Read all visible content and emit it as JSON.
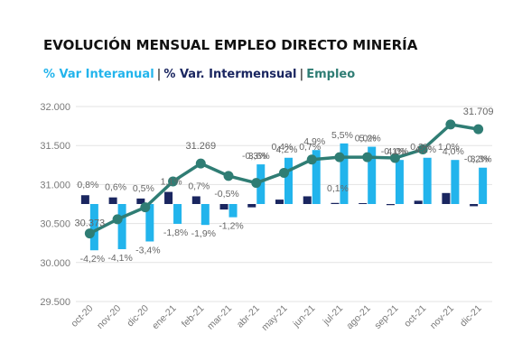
{
  "colors": {
    "interanual": "#22b4ec",
    "intermensual": "#1a2660",
    "empleo": "#2f7d74",
    "grid": "#e3e3e3",
    "sep": "#444444"
  },
  "chart_data": {
    "type": "bar",
    "title": "EVOLUCIÓN MENSUAL EMPLEO DIRECTO MINERÍA",
    "legend": {
      "items": [
        "% Var Interanual",
        "% Var. Intermensual",
        "Empleo"
      ],
      "separator": "|",
      "placement": "top-left"
    },
    "categories": [
      "oct-20",
      "nov-20",
      "dic-20",
      "ene-21",
      "feb-21",
      "mar-21",
      "abr-21",
      "may-21",
      "jun-21",
      "jul-21",
      "ago-21",
      "sep-21",
      "oct-21",
      "nov-21",
      "dic-21"
    ],
    "ylim": [
      29500,
      32000
    ],
    "yticks": [
      "29.500",
      "30.000",
      "30.500",
      "31.000",
      "31.500",
      "32.000"
    ],
    "grid": true,
    "series": [
      {
        "name": "% Var. Intermensual",
        "kind": "bar",
        "values": [
          0.8,
          0.6,
          0.5,
          1.1,
          0.7,
          -0.5,
          -0.3,
          0.4,
          0.7,
          0.1,
          0.0,
          -0.1,
          0.3,
          1.0,
          -0.2
        ],
        "labels": [
          "0,8%",
          "0,6%",
          "0,5%",
          "1,1%",
          "0,7%",
          "-0,5%",
          "-0,3%",
          "0,4%",
          "0,7%",
          "0,1%",
          "0,0%",
          "-0,1%",
          "0,3%",
          "1,0%",
          "-0,2%"
        ]
      },
      {
        "name": "% Var Interanual",
        "kind": "bar",
        "values": [
          -4.2,
          -4.1,
          -3.4,
          -1.8,
          -1.9,
          -1.2,
          3.6,
          4.2,
          4.9,
          5.5,
          5.2,
          4.0,
          4.2,
          4.0,
          3.3
        ],
        "labels": [
          "-4,2%",
          "-4,1%",
          "-3,4%",
          "-1,8%",
          "-1,9%",
          "-1,2%",
          "3,6%",
          "4,2%",
          "4,9%",
          "5,5%",
          "5,2%",
          "4,0%",
          "4,2%",
          "4,0%",
          "3,3%"
        ]
      },
      {
        "name": "Empleo",
        "kind": "line",
        "values": [
          30373,
          30555,
          30708,
          31040,
          31269,
          31110,
          31020,
          31150,
          31320,
          31350,
          31350,
          31340,
          31450,
          31770,
          31709
        ],
        "labels": [
          "30.373",
          "",
          "",
          "",
          "31.269",
          "",
          "",
          "",
          "",
          "",
          "",
          "",
          "",
          "",
          "31.709"
        ]
      }
    ]
  }
}
